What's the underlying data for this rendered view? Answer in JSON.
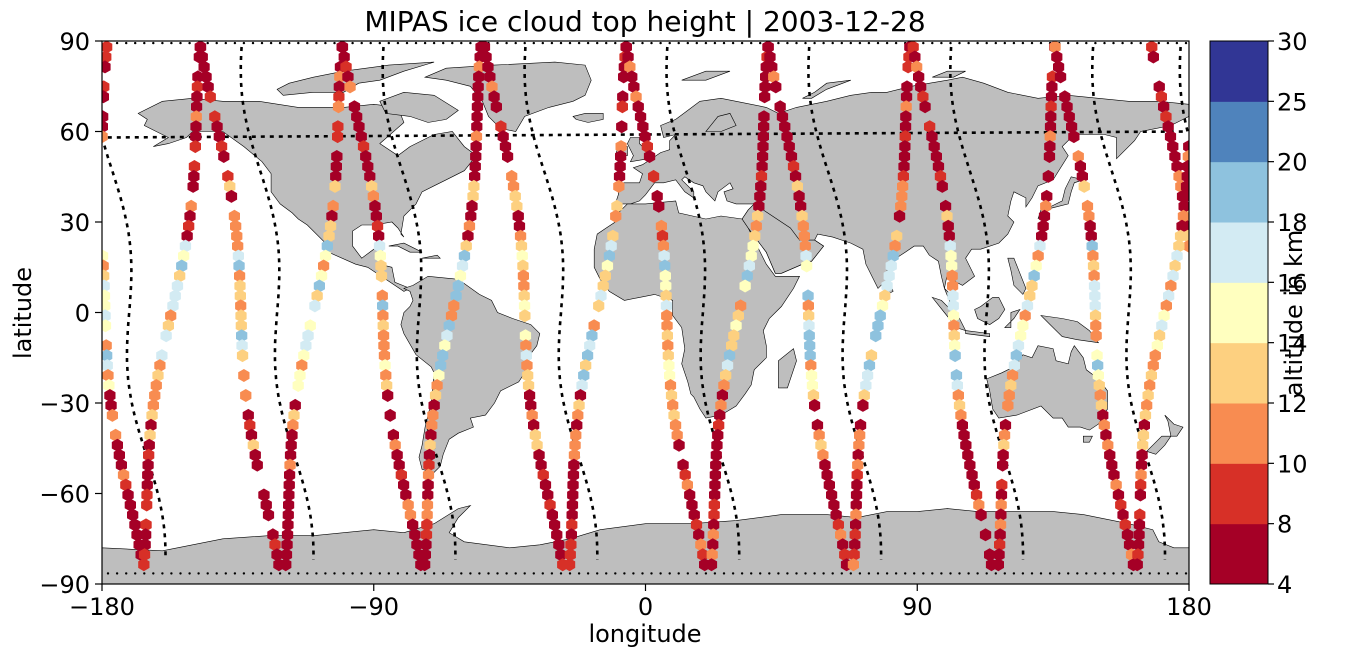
{
  "chart_data": {
    "type": "scatter",
    "title": "MIPAS ice cloud top height | 2003-12-28",
    "xlabel": "longitude",
    "ylabel": "latitude",
    "xlim": [
      -180,
      180
    ],
    "ylim": [
      -90,
      90
    ],
    "xticks": [
      -180,
      -90,
      0,
      90,
      180
    ],
    "yticks": [
      -90,
      -60,
      -30,
      0,
      30,
      60,
      90
    ],
    "xtick_labels": [
      "−180",
      "−90",
      "0",
      "90",
      "180"
    ],
    "ytick_labels": [
      "−90",
      "−60",
      "−30",
      "0",
      "30",
      "60",
      "90"
    ],
    "grid": false,
    "projection": "plate carree",
    "land_color": "#bebebe",
    "ocean_color": "#ffffff",
    "marker": "hexagon",
    "colorbar": {
      "label": "altitude in km",
      "boundaries": [
        4,
        8,
        10,
        12,
        14,
        16,
        18,
        20,
        25,
        30
      ],
      "tick_labels": [
        "4",
        "8",
        "10",
        "12",
        "14",
        "16",
        "18",
        "20",
        "25",
        "30"
      ],
      "colors": [
        "#a50026",
        "#d73027",
        "#f46d43",
        "#fdae61",
        "#fee090",
        "#ffffbf",
        "#e0f3f8",
        "#abd9e9",
        "#74add1",
        "#4575b4",
        "#313695"
      ],
      "bin_colors": [
        "#a50026",
        "#d73027",
        "#f88c51",
        "#fdd080",
        "#ffffbf",
        "#d3ebf3",
        "#8ec2de",
        "#4f83bc",
        "#313695"
      ]
    },
    "series": [
      {
        "lon": 1,
        "lat_start": 90,
        "lat_end": -87,
        "pattern": [
          7,
          7,
          7,
          7,
          7,
          6,
          6,
          7,
          7,
          8,
          8,
          8,
          9,
          9,
          7,
          7,
          5,
          5,
          4,
          4,
          4,
          4,
          4,
          4,
          5,
          5,
          5,
          5,
          4,
          4,
          3,
          3,
          4,
          4,
          4,
          4,
          4,
          5,
          6,
          6
        ]
      }
    ],
    "tracks": [
      {
        "lon0": -179,
        "dir": 1
      },
      {
        "lon0": -157,
        "dir": -1
      },
      {
        "lon0": -134,
        "dir": 1
      },
      {
        "lon0": -110,
        "dir": -1
      },
      {
        "lon0": -87,
        "dir": 1
      },
      {
        "lon0": -64,
        "dir": -1
      },
      {
        "lon0": -40,
        "dir": 1
      },
      {
        "lon0": -16,
        "dir": -1
      },
      {
        "lon0": 7,
        "dir": 1
      },
      {
        "lon0": 31,
        "dir": -1
      },
      {
        "lon0": 54,
        "dir": 1
      },
      {
        "lon0": 78,
        "dir": -1
      },
      {
        "lon0": 102,
        "dir": 1
      },
      {
        "lon0": 126,
        "dir": -1
      },
      {
        "lon0": 149,
        "dir": 1
      },
      {
        "lon0": 172,
        "dir": -1
      }
    ],
    "dotted_tracks": [
      {
        "lon0": -171
      },
      {
        "lon0": -122
      },
      {
        "lon0": -75
      },
      {
        "lon0": -28
      },
      {
        "lon0": 19
      },
      {
        "lon0": 66
      },
      {
        "lon0": 113
      },
      {
        "lon0": 160
      }
    ]
  }
}
